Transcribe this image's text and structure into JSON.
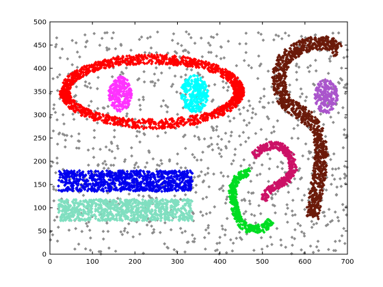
{
  "chart_data": {
    "type": "scatter",
    "title": "",
    "xlabel": "",
    "ylabel": "",
    "xlim": [
      0,
      700
    ],
    "ylim": [
      0,
      500
    ],
    "grid": false,
    "x_ticks": [
      "0",
      "100",
      "200",
      "300",
      "400",
      "500",
      "600",
      "700"
    ],
    "y_ticks": [
      "0",
      "50",
      "100",
      "150",
      "200",
      "250",
      "300",
      "350",
      "400",
      "450",
      "500"
    ],
    "background_noise": {
      "color": "#8c8c8c",
      "count": 950,
      "x_range": [
        0,
        700
      ],
      "y_range": [
        0,
        480
      ]
    },
    "series": [
      {
        "color": "#ff0000",
        "shape": "ellipse ring",
        "center": [
          240,
          350
        ],
        "radii": [
          205,
          70
        ],
        "band_width": 24,
        "count": 1500
      },
      {
        "color": "#ff33ff",
        "shape": "ellipse blob",
        "center": [
          165,
          345
        ],
        "radii": [
          27,
          38
        ],
        "count": 260
      },
      {
        "color": "#00ffff",
        "shape": "ellipse blob",
        "center": [
          340,
          345
        ],
        "radii": [
          32,
          40
        ],
        "count": 300
      },
      {
        "color": "#0000ee",
        "shape": "rectangle",
        "x_range": [
          20,
          335
        ],
        "y_range": [
          135,
          180
        ],
        "count": 900
      },
      {
        "color": "#80dfc0",
        "shape": "rectangle",
        "x_range": [
          20,
          335
        ],
        "y_range": [
          72,
          118
        ],
        "count": 900
      },
      {
        "color": "#00dd22",
        "shape": "curve",
        "count": 420,
        "band_width": 16,
        "path": [
          [
            470,
            178
          ],
          [
            443,
            168
          ],
          [
            430,
            142
          ],
          [
            432,
            112
          ],
          [
            440,
            82
          ],
          [
            458,
            58
          ],
          [
            482,
            52
          ],
          [
            506,
            58
          ],
          [
            520,
            72
          ]
        ]
      },
      {
        "color": "#cc1166",
        "shape": "curve",
        "count": 420,
        "band_width": 16,
        "path": [
          [
            478,
            210
          ],
          [
            500,
            228
          ],
          [
            527,
            236
          ],
          [
            552,
            228
          ],
          [
            568,
            208
          ],
          [
            572,
            185
          ],
          [
            562,
            165
          ],
          [
            540,
            150
          ],
          [
            515,
            138
          ],
          [
            502,
            118
          ]
        ]
      },
      {
        "color": "#6b1a0a",
        "shape": "curve",
        "count": 1100,
        "band_width": 30,
        "path": [
          [
            680,
            438
          ],
          [
            655,
            453
          ],
          [
            620,
            455
          ],
          [
            585,
            443
          ],
          [
            556,
            425
          ],
          [
            542,
            400
          ],
          [
            538,
            370
          ],
          [
            545,
            340
          ],
          [
            565,
            318
          ],
          [
            600,
            300
          ],
          [
            625,
            275
          ],
          [
            635,
            245
          ],
          [
            638,
            205
          ],
          [
            632,
            160
          ],
          [
            625,
            120
          ],
          [
            618,
            78
          ]
        ]
      },
      {
        "color": "#aa55cc",
        "shape": "ellipse blob",
        "center": [
          650,
          340
        ],
        "radii": [
          27,
          37
        ],
        "count": 220
      }
    ]
  }
}
